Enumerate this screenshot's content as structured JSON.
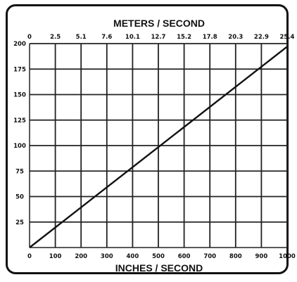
{
  "chart_data": {
    "type": "line",
    "top_axis": {
      "label": "METERS / SECOND",
      "ticks": [
        "0",
        "2.5",
        "5.1",
        "7.6",
        "10.1",
        "12.7",
        "15.2",
        "17.8",
        "20.3",
        "22.9",
        "25.4"
      ]
    },
    "bottom_axis": {
      "label": "INCHES / SECOND",
      "ticks": [
        "0",
        "100",
        "200",
        "300",
        "400",
        "500",
        "600",
        "700",
        "800",
        "900",
        "1000"
      ],
      "range": [
        0,
        1000
      ]
    },
    "left_axis": {
      "ticks": [
        "200",
        "175",
        "150",
        "125",
        "100",
        "75",
        "50",
        "25"
      ],
      "range": [
        0,
        200
      ]
    },
    "grid": true,
    "series": [
      {
        "x": [
          0,
          1000
        ],
        "y": [
          0,
          197
        ],
        "color": "#111111"
      }
    ]
  }
}
